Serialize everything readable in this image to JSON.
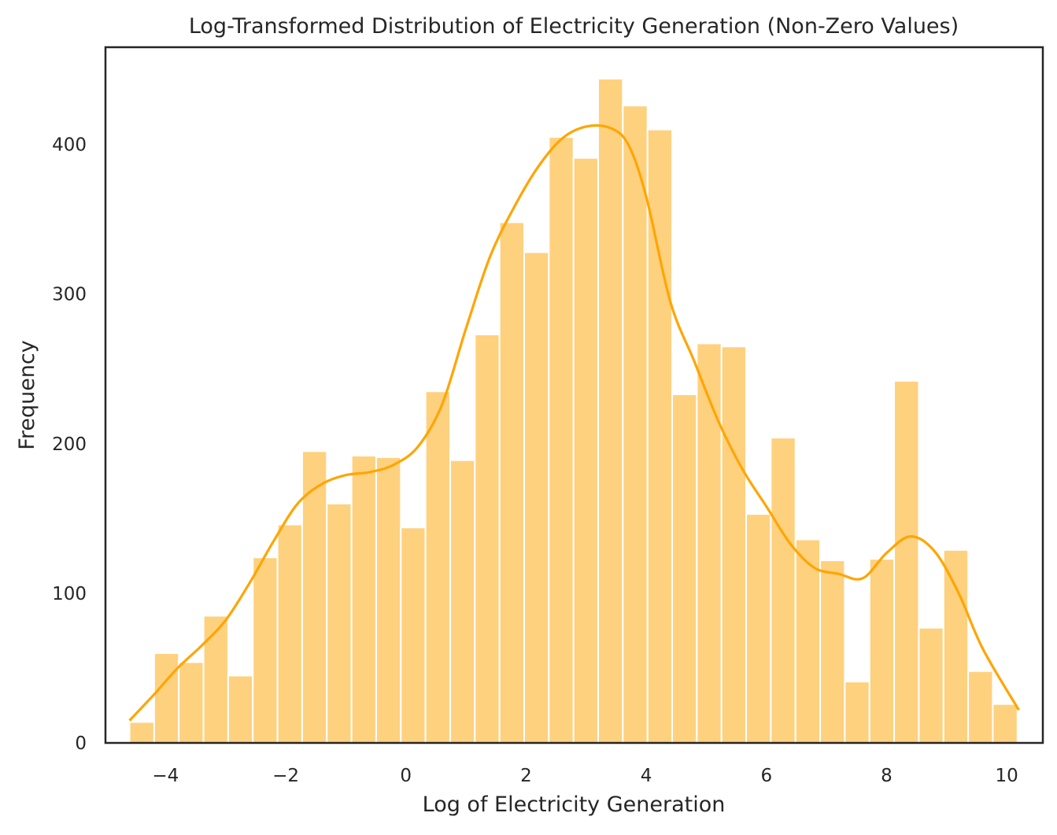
{
  "chart_data": {
    "type": "bar",
    "title": "Log-Transformed Distribution of Electricity Generation (Non-Zero Values)",
    "xlabel": "Log of Electricity Generation",
    "ylabel": "Frequency",
    "xlim": [
      -5.0,
      10.6
    ],
    "ylim": [
      0,
      465
    ],
    "grid": false,
    "legend": "none",
    "x_ticks": [
      -4,
      -2,
      0,
      2,
      4,
      6,
      8,
      10
    ],
    "x_tick_labels": [
      "−4",
      "−2",
      "0",
      "2",
      "4",
      "6",
      "8",
      "10"
    ],
    "y_ticks": [
      0,
      100,
      200,
      300,
      400
    ],
    "y_tick_labels": [
      "0",
      "100",
      "200",
      "300",
      "400"
    ],
    "bin_start": -4.6,
    "bin_width": 0.4105,
    "values": [
      14,
      60,
      54,
      85,
      45,
      124,
      146,
      195,
      160,
      192,
      191,
      144,
      235,
      189,
      273,
      348,
      328,
      405,
      391,
      444,
      426,
      410,
      233,
      267,
      265,
      153,
      204,
      136,
      122,
      41,
      123,
      242,
      77,
      129,
      48,
      26
    ],
    "kde": {
      "x": [
        -4.6,
        -4.2,
        -3.8,
        -3.4,
        -3.0,
        -2.6,
        -2.2,
        -1.8,
        -1.4,
        -1.0,
        -0.6,
        -0.2,
        0.2,
        0.6,
        1.0,
        1.4,
        1.8,
        2.2,
        2.6,
        3.0,
        3.4,
        3.7,
        4.0,
        4.4,
        4.8,
        5.2,
        5.6,
        6.0,
        6.4,
        6.8,
        7.2,
        7.6,
        8.0,
        8.4,
        8.8,
        9.2,
        9.6,
        10.2
      ],
      "y": [
        15,
        32,
        50,
        65,
        82,
        107,
        135,
        160,
        173,
        179,
        181,
        186,
        198,
        226,
        277,
        325,
        358,
        385,
        404,
        412,
        411,
        400,
        365,
        295,
        255,
        215,
        183,
        158,
        133,
        117,
        113,
        110,
        127,
        138,
        128,
        100,
        63,
        22
      ]
    },
    "bar_color": "#fed17f",
    "kde_color": "#ffa500"
  }
}
